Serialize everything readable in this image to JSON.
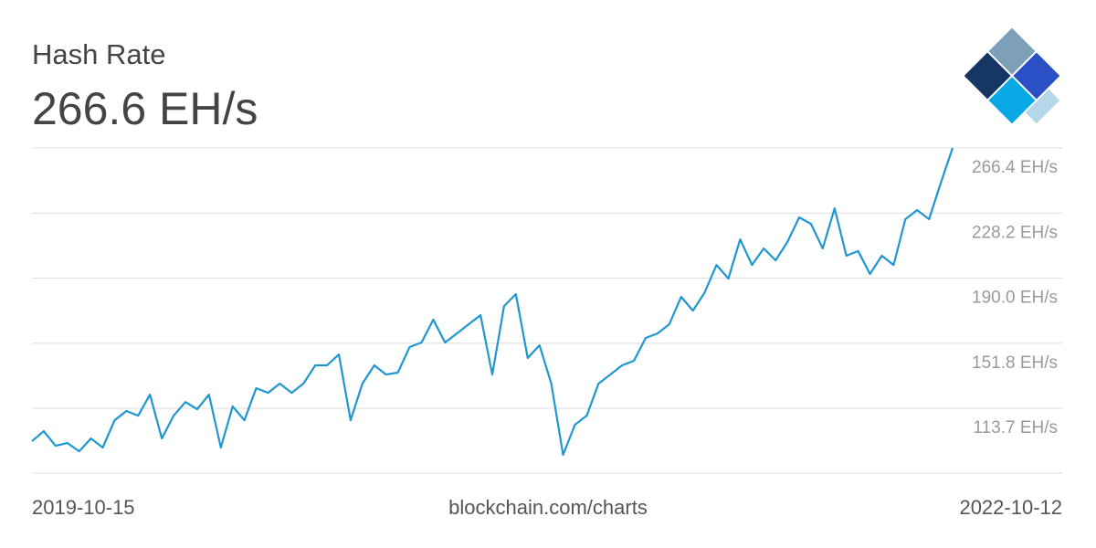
{
  "chart_data": {
    "type": "line",
    "title": "Hash Rate",
    "headline": "266.6 EH/s",
    "source": "blockchain.com/charts",
    "categories": [
      "2019-10-15",
      null,
      null,
      null,
      null,
      null,
      null,
      null,
      null,
      null,
      null,
      null,
      null,
      null,
      null,
      null,
      null,
      null,
      null,
      null,
      null,
      null,
      null,
      null,
      null,
      null,
      null,
      null,
      null,
      null,
      null,
      null,
      null,
      null,
      null,
      null,
      null,
      null,
      null,
      null,
      null,
      null,
      null,
      null,
      null,
      null,
      null,
      null,
      null,
      null,
      null,
      null,
      null,
      null,
      null,
      null,
      null,
      null,
      null,
      null,
      null,
      null,
      null,
      null,
      null,
      null,
      null,
      null,
      null,
      null,
      null,
      null,
      null,
      null,
      null,
      null,
      null,
      null,
      "2022-10-12"
    ],
    "series": [
      {
        "name": "Hash Rate",
        "color": "#1f97d1",
        "values": [
          94.4,
          100.3,
          91.7,
          93.3,
          88.5,
          96.0,
          90.7,
          106.7,
          112.1,
          109.4,
          121.7,
          96.0,
          109.4,
          117.4,
          113.2,
          121.7,
          90.7,
          114.8,
          106.7,
          125.5,
          122.8,
          128.2,
          122.8,
          128.2,
          138.9,
          138.9,
          145.3,
          106.7,
          128.2,
          138.9,
          133.5,
          134.6,
          149.6,
          152.3,
          165.7,
          152.3,
          157.6,
          163.0,
          168.3,
          133.5,
          173.7,
          180.7,
          143.2,
          150.7,
          128.2,
          86.4,
          104.1,
          109.4,
          128.2,
          133.5,
          138.9,
          141.6,
          155.0,
          157.6,
          163.0,
          179.1,
          171.0,
          181.7,
          197.8,
          189.8,
          212.8,
          197.8,
          207.5,
          200.5,
          211.2,
          225.7,
          221.9,
          207.5,
          231.0,
          203.2,
          205.9,
          192.5,
          203.2,
          197.8,
          224.6,
          230.0,
          224.6,
          246.0,
          266.4
        ]
      }
    ],
    "ylim": [
      75.7,
      266.4
    ],
    "yticks": [
      {
        "value": 113.7,
        "label": "113.7 EH/s"
      },
      {
        "value": 151.8,
        "label": "151.8 EH/s"
      },
      {
        "value": 190.0,
        "label": "190.0 EH/s"
      },
      {
        "value": 228.2,
        "label": "228.2 EH/s"
      },
      {
        "value": 266.4,
        "label": "266.4 EH/s"
      }
    ],
    "grid": true
  }
}
